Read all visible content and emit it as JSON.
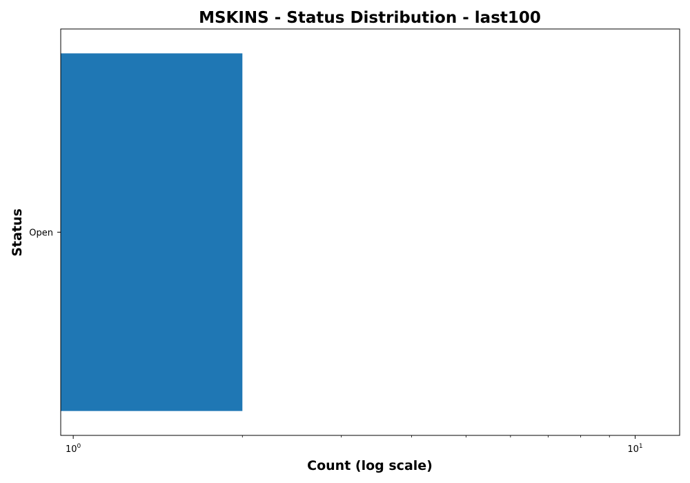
{
  "chart_data": {
    "type": "bar",
    "orientation": "horizontal",
    "title": "MSKINS - Status Distribution - last100",
    "xlabel": "Count (log scale)",
    "ylabel": "Status",
    "x_scale": "log",
    "xlim": [
      0.95,
      12.0
    ],
    "categories": [
      "Open"
    ],
    "values": [
      2
    ],
    "series_color": "#1f77b4",
    "x_major_ticks": [
      {
        "value": 1,
        "base": "10",
        "exponent": "0"
      },
      {
        "value": 10,
        "base": "10",
        "exponent": "1"
      }
    ],
    "x_minor_ticks": [
      2,
      3,
      4,
      5,
      6,
      7,
      8,
      9
    ],
    "grid": false,
    "legend": false
  }
}
